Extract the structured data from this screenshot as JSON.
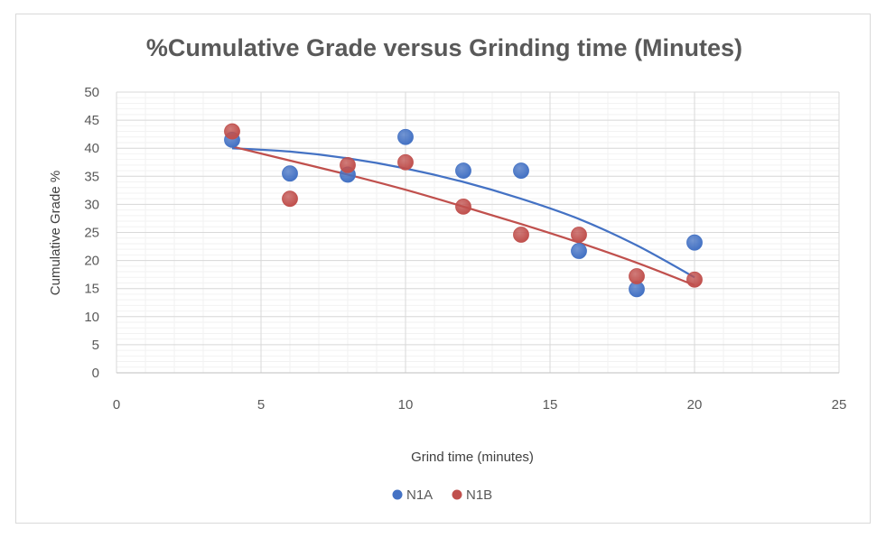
{
  "chart_data": {
    "type": "scatter",
    "title": "%Cumulative Grade versus Grinding time (Minutes)",
    "xlabel": "Grind time  (minutes)",
    "ylabel": "Cumulative Grade %",
    "xlim": [
      0,
      25
    ],
    "ylim": [
      0,
      50
    ],
    "xticks": [
      0,
      5,
      10,
      15,
      20,
      25
    ],
    "yticks": [
      0,
      5,
      10,
      15,
      20,
      25,
      30,
      35,
      40,
      45,
      50
    ],
    "grid": true,
    "legend_position": "bottom",
    "trendline": "polynomial (order 2)",
    "series": [
      {
        "name": "N1A",
        "color": "#4472C4",
        "x": [
          4,
          6,
          8,
          10,
          12,
          14,
          16,
          18,
          20
        ],
        "y": [
          41.5,
          35.5,
          35.3,
          42,
          36,
          36,
          21.7,
          14.9,
          23.2
        ],
        "trend": [
          40.0,
          39.4,
          38.2,
          36.4,
          34.0,
          31.0,
          27.4,
          22.7,
          17.0
        ]
      },
      {
        "name": "N1B",
        "color": "#C0504D",
        "x": [
          4,
          6,
          8,
          10,
          12,
          14,
          16,
          18,
          20
        ],
        "y": [
          43,
          31,
          37,
          37.5,
          29.6,
          24.6,
          24.6,
          17.2,
          16.6
        ],
        "trend": [
          40.3,
          37.8,
          35.3,
          32.6,
          29.6,
          26.5,
          23.2,
          19.6,
          15.6
        ]
      }
    ]
  }
}
